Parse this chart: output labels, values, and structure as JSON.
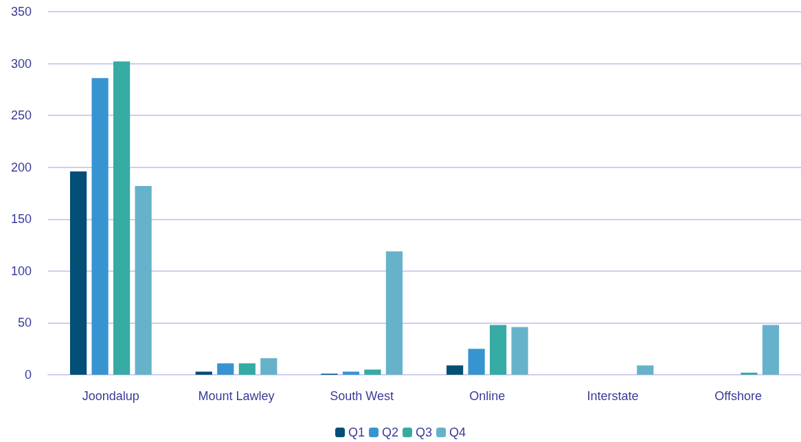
{
  "chart_data": {
    "type": "bar",
    "categories": [
      "Joondalup",
      "Mount Lawley",
      "South West",
      "Online",
      "Interstate",
      "Offshore"
    ],
    "series": [
      {
        "name": "Q1",
        "color": "#034f75",
        "values": [
          196,
          3,
          1,
          9,
          null,
          null
        ]
      },
      {
        "name": "Q2",
        "color": "#3894d1",
        "values": [
          286,
          11,
          3,
          25,
          null,
          null
        ]
      },
      {
        "name": "Q3",
        "color": "#36aba4",
        "values": [
          302,
          11,
          5,
          48,
          null,
          2
        ]
      },
      {
        "name": "Q4",
        "color": "#67b2cb",
        "values": [
          182,
          16,
          119,
          46,
          9,
          48
        ]
      }
    ],
    "ylim": [
      0,
      350
    ],
    "yticks": [
      0,
      50,
      100,
      150,
      200,
      250,
      300,
      350
    ],
    "grid": "y",
    "legend": "bottom"
  }
}
